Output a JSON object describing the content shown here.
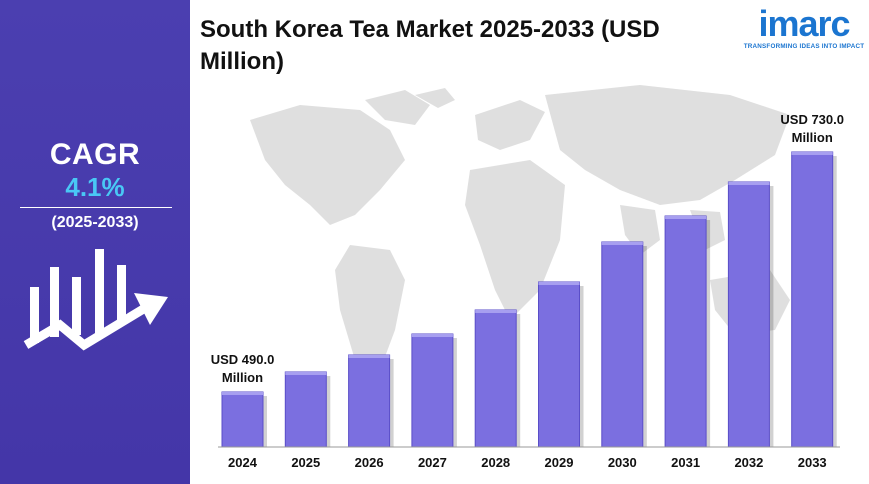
{
  "sidebar": {
    "cagr_title": "CAGR",
    "cagr_value": "4.1%",
    "cagr_period": "(2025-2033)"
  },
  "header": {
    "title": "South Korea Tea Market 2025-2033 (USD Million)"
  },
  "logo": {
    "word": "imarc",
    "tagline": "TRANSFORMING IDEAS INTO IMPACT"
  },
  "colors": {
    "panel": "#4b3fb0",
    "bar": "#7b6fe0",
    "bar_dark": "#5a4ec8",
    "accent": "#49c8f5",
    "map": "#dcdcdc"
  },
  "chart_data": {
    "type": "bar",
    "title": "South Korea Tea Market 2025-2033 (USD Million)",
    "categories": [
      "2024",
      "2025",
      "2026",
      "2027",
      "2028",
      "2029",
      "2030",
      "2031",
      "2032",
      "2033"
    ],
    "values": [
      490,
      510,
      527,
      548,
      572,
      600,
      640,
      666,
      700,
      730
    ],
    "unit": "USD Million",
    "ylim": [
      435,
      760
    ],
    "grid": false,
    "annotations": [
      {
        "category": "2024",
        "lines": [
          "USD 490.0",
          "Million"
        ]
      },
      {
        "category": "2033",
        "lines": [
          "USD 730.0",
          "Million"
        ]
      }
    ]
  }
}
